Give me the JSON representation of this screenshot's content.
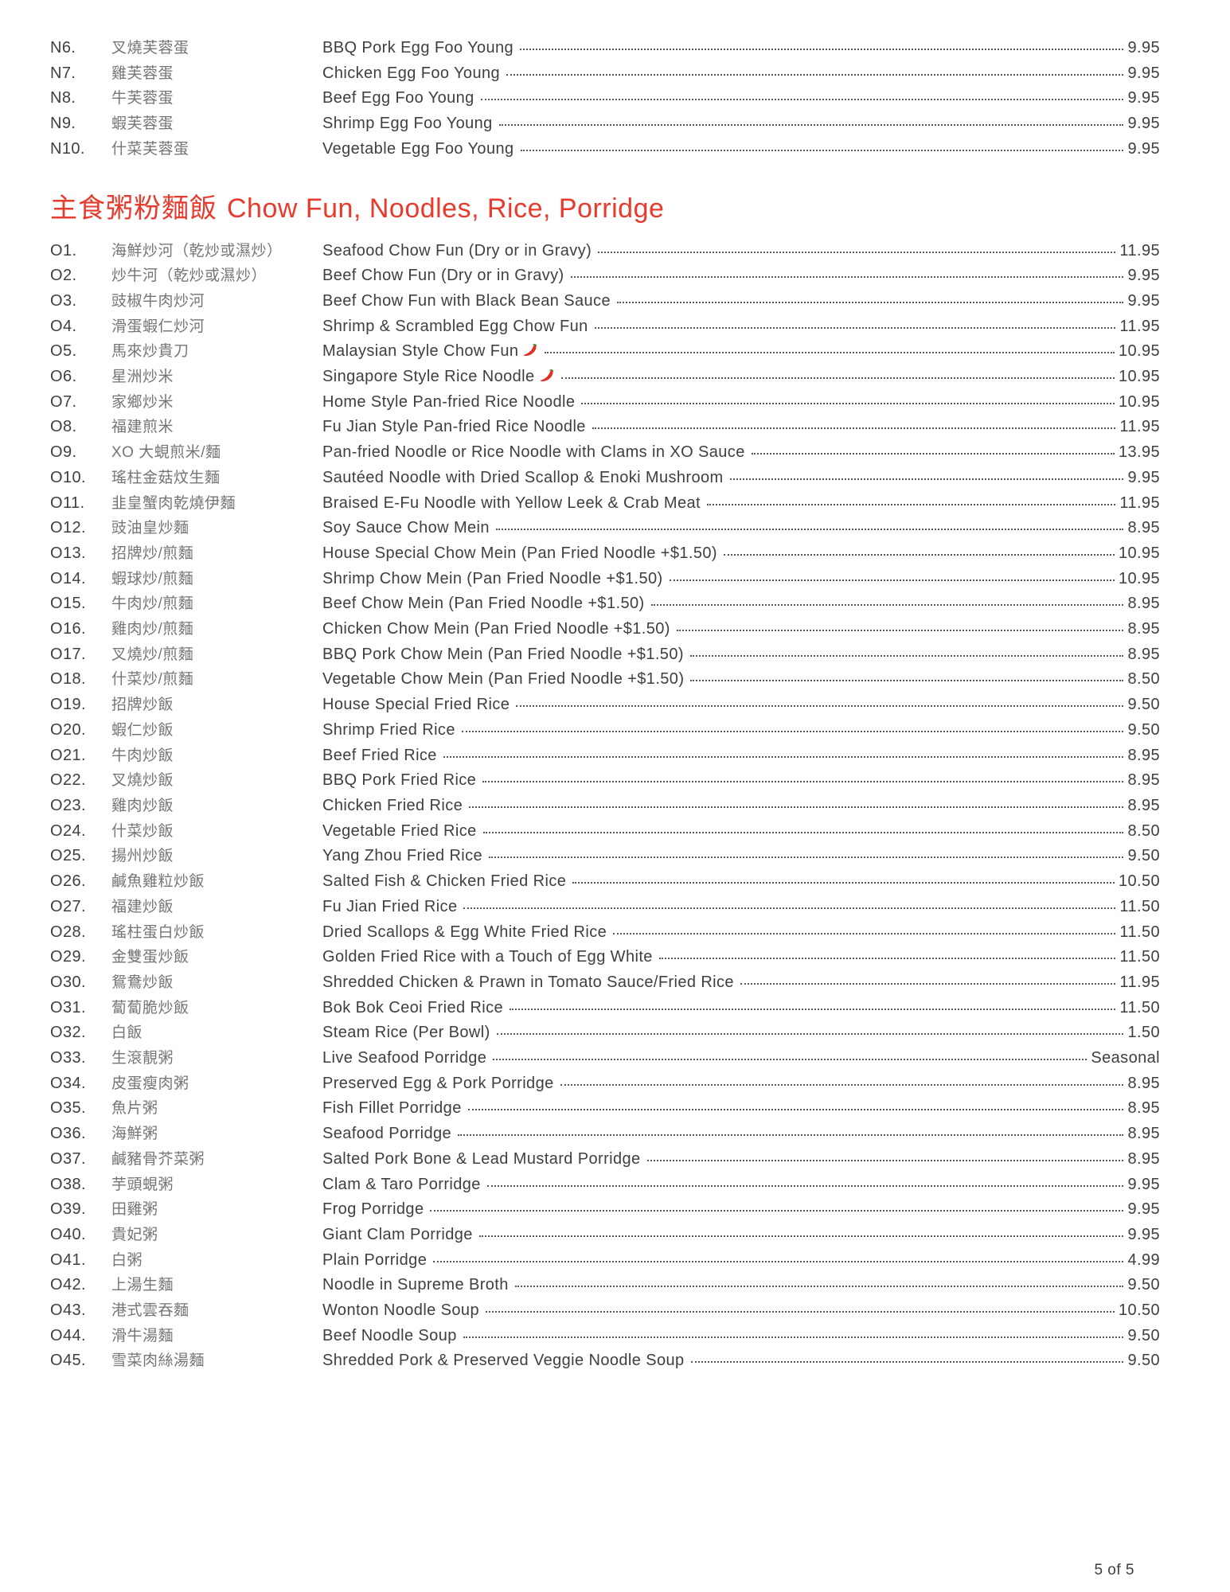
{
  "page": {
    "footer": "5 of 5"
  },
  "colors": {
    "accent": "#e83a2d",
    "text": "#3f3f3f",
    "cjk": "#757575",
    "dots": "#565656"
  },
  "icons": {
    "chili": "chili-pepper"
  },
  "sections": [
    {
      "id": "egg-foo-young-continued",
      "header": null,
      "items": [
        {
          "num": "N6.",
          "cn": "叉燒芙蓉蛋",
          "en": "BBQ Pork Egg Foo Young",
          "price": "9.95"
        },
        {
          "num": "N7.",
          "cn": "雞芙蓉蛋",
          "en": "Chicken Egg Foo Young",
          "price": "9.95"
        },
        {
          "num": "N8.",
          "cn": "牛芙蓉蛋",
          "en": "Beef Egg Foo Young",
          "price": "9.95"
        },
        {
          "num": "N9.",
          "cn": "蝦芙蓉蛋",
          "en": "Shrimp Egg Foo Young",
          "price": "9.95"
        },
        {
          "num": "N10.",
          "cn": "什菜芙蓉蛋",
          "en": "Vegetable Egg Foo Young",
          "price": "9.95"
        }
      ]
    },
    {
      "id": "chow-fun-noodles-rice-porridge",
      "header": {
        "cn": "主食粥粉麵飯",
        "en": "Chow Fun, Noodles, Rice, Porridge"
      },
      "items": [
        {
          "num": "O1.",
          "cn": "海鮮炒河（乾炒或濕炒）",
          "en": "Seafood Chow Fun (Dry or in Gravy)",
          "price": "11.95"
        },
        {
          "num": "O2.",
          "cn": "炒牛河（乾炒或濕炒）",
          "en": "Beef Chow Fun (Dry or in Gravy)",
          "price": "9.95"
        },
        {
          "num": "O3.",
          "cn": "豉椒牛肉炒河",
          "en": "Beef Chow Fun with Black Bean Sauce",
          "price": "9.95"
        },
        {
          "num": "O4.",
          "cn": "滑蛋蝦仁炒河",
          "en": "Shrimp & Scrambled Egg Chow Fun",
          "price": "11.95"
        },
        {
          "num": "O5.",
          "cn": "馬來炒貴刀",
          "en": "Malaysian Style Chow Fun",
          "price": "10.95",
          "spicy": true
        },
        {
          "num": "O6.",
          "cn": "星洲炒米",
          "en": "Singapore Style Rice Noodle",
          "price": "10.95",
          "spicy": true
        },
        {
          "num": "O7.",
          "cn": "家鄉炒米",
          "en": "Home Style Pan-fried Rice Noodle",
          "price": "10.95"
        },
        {
          "num": "O8.",
          "cn": "福建煎米",
          "en": "Fu Jian Style Pan-fried Rice Noodle",
          "price": "11.95"
        },
        {
          "num": "O9.",
          "cn": "XO 大蜆煎米/麵",
          "en": "Pan-fried Noodle or Rice Noodle with Clams in XO Sauce",
          "price": "13.95"
        },
        {
          "num": "O10.",
          "cn": "瑤柱金菇炆生麵",
          "en": "Sautéed Noodle with Dried Scallop & Enoki Mushroom",
          "price": "9.95"
        },
        {
          "num": "O11.",
          "cn": "韭皇蟹肉乾燒伊麵",
          "en": "Braised E-Fu Noodle with Yellow Leek & Crab Meat",
          "price": "11.95"
        },
        {
          "num": "O12.",
          "cn": "豉油皇炒麵",
          "en": "Soy Sauce Chow Mein",
          "price": "8.95"
        },
        {
          "num": "O13.",
          "cn": "招牌炒/煎麵",
          "en": "House Special Chow Mein (Pan Fried Noodle +$1.50)",
          "price": "10.95"
        },
        {
          "num": "O14.",
          "cn": "蝦球炒/煎麵",
          "en": "Shrimp Chow Mein (Pan Fried Noodle +$1.50)",
          "price": "10.95"
        },
        {
          "num": "O15.",
          "cn": "牛肉炒/煎麵",
          "en": "Beef Chow Mein (Pan Fried Noodle +$1.50)",
          "price": "8.95"
        },
        {
          "num": "O16.",
          "cn": "雞肉炒/煎麵",
          "en": "Chicken Chow Mein (Pan Fried Noodle +$1.50)",
          "price": "8.95"
        },
        {
          "num": "O17.",
          "cn": "叉燒炒/煎麵",
          "en": "BBQ Pork Chow Mein (Pan Fried Noodle +$1.50)",
          "price": "8.95"
        },
        {
          "num": "O18.",
          "cn": "什菜炒/煎麵",
          "en": "Vegetable Chow Mein (Pan Fried Noodle +$1.50)",
          "price": "8.50"
        },
        {
          "num": "O19.",
          "cn": "招牌炒飯",
          "en": "House Special Fried Rice",
          "price": "9.50"
        },
        {
          "num": "O20.",
          "cn": "蝦仁炒飯",
          "en": "Shrimp Fried Rice",
          "price": "9.50"
        },
        {
          "num": "O21.",
          "cn": "牛肉炒飯",
          "en": "Beef Fried Rice",
          "price": "8.95"
        },
        {
          "num": "O22.",
          "cn": "叉燒炒飯",
          "en": "BBQ Pork Fried Rice",
          "price": "8.95"
        },
        {
          "num": "O23.",
          "cn": "雞肉炒飯",
          "en": "Chicken Fried Rice",
          "price": "8.95"
        },
        {
          "num": "O24.",
          "cn": "什菜炒飯",
          "en": "Vegetable Fried Rice",
          "price": "8.50"
        },
        {
          "num": "O25.",
          "cn": "揚州炒飯",
          "en": "Yang Zhou Fried Rice",
          "price": "9.50"
        },
        {
          "num": "O26.",
          "cn": "鹹魚雞粒炒飯",
          "en": "Salted Fish & Chicken Fried Rice",
          "price": "10.50"
        },
        {
          "num": "O27.",
          "cn": "福建炒飯",
          "en": "Fu Jian Fried Rice",
          "price": "11.50"
        },
        {
          "num": "O28.",
          "cn": "瑤柱蛋白炒飯",
          "en": "Dried Scallops & Egg White Fried Rice",
          "price": "11.50"
        },
        {
          "num": "O29.",
          "cn": "金雙蛋炒飯",
          "en": "Golden Fried Rice with a Touch of Egg White",
          "price": "11.50"
        },
        {
          "num": "O30.",
          "cn": "鴛鴦炒飯",
          "en": "Shredded Chicken & Prawn in Tomato Sauce/Fried Rice",
          "price": "11.95"
        },
        {
          "num": "O31.",
          "cn": "蔔蔔脆炒飯",
          "en": "Bok Bok Ceoi Fried Rice",
          "price": "11.50"
        },
        {
          "num": "O32.",
          "cn": "白飯",
          "en": "Steam Rice (Per Bowl)",
          "price": "1.50"
        },
        {
          "num": "O33.",
          "cn": "生滾靚粥",
          "en": "Live Seafood Porridge",
          "price": "Seasonal"
        },
        {
          "num": "O34.",
          "cn": "皮蛋瘦肉粥",
          "en": "Preserved Egg & Pork Porridge",
          "price": "8.95"
        },
        {
          "num": "O35.",
          "cn": "魚片粥",
          "en": "Fish Fillet Porridge",
          "price": "8.95"
        },
        {
          "num": "O36.",
          "cn": "海鮮粥",
          "en": "Seafood Porridge",
          "price": "8.95"
        },
        {
          "num": "O37.",
          "cn": "鹹豬骨芥菜粥",
          "en": "Salted Pork Bone & Lead Mustard Porridge",
          "price": "8.95"
        },
        {
          "num": "O38.",
          "cn": "芋頭蜆粥",
          "en": "Clam & Taro Porridge",
          "price": "9.95"
        },
        {
          "num": "O39.",
          "cn": "田雞粥",
          "en": "Frog Porridge",
          "price": "9.95"
        },
        {
          "num": "O40.",
          "cn": "貴妃粥",
          "en": "Giant Clam Porridge",
          "price": "9.95"
        },
        {
          "num": "O41.",
          "cn": "白粥",
          "en": "Plain Porridge",
          "price": "4.99"
        },
        {
          "num": "O42.",
          "cn": "上湯生麵",
          "en": "Noodle in Supreme Broth",
          "price": "9.50"
        },
        {
          "num": "O43.",
          "cn": "港式雲吞麵",
          "en": "Wonton Noodle Soup",
          "price": "10.50"
        },
        {
          "num": "O44.",
          "cn": "滑牛湯麵",
          "en": "Beef Noodle Soup",
          "price": "9.50"
        },
        {
          "num": "O45.",
          "cn": "雪菜肉絲湯麵",
          "en": "Shredded Pork & Preserved Veggie Noodle Soup",
          "price": "9.50"
        }
      ]
    }
  ]
}
